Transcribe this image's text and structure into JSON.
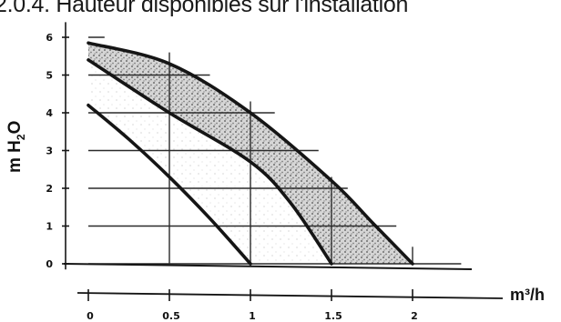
{
  "chart_data": {
    "type": "line",
    "title": "2.0.4. Hauteur disponibles sur l'installation",
    "ylabel_main": "m H",
    "ylabel_sub": "2",
    "ylabel_tail": "O",
    "xlabel": "m³/h",
    "xlim": [
      0,
      2.3
    ],
    "ylim": [
      0,
      6
    ],
    "x_ticks": [
      "0",
      "0.5",
      "1",
      "1.5",
      "2"
    ],
    "y_ticks": [
      "0",
      "1",
      "2",
      "3",
      "4",
      "5",
      "6"
    ],
    "grid": true,
    "series": [
      {
        "x": [
          0,
          0.25,
          0.5,
          0.75,
          1.0
        ],
        "y": [
          4.2,
          3.3,
          2.3,
          1.2,
          0
        ]
      },
      {
        "x": [
          0,
          0.5,
          1.0,
          1.25,
          1.5
        ],
        "y": [
          5.4,
          4.0,
          2.7,
          1.6,
          0
        ]
      },
      {
        "x": [
          0,
          0.5,
          1.0,
          1.5,
          1.75,
          2.0
        ],
        "y": [
          5.85,
          5.3,
          4.0,
          2.2,
          1.1,
          0
        ]
      }
    ],
    "shaded_band": "between upper two curves"
  },
  "colors": {
    "curve": "#151515",
    "grid": "#2a2a2a",
    "band": "#8a8a8a",
    "background": "#ffffff"
  }
}
